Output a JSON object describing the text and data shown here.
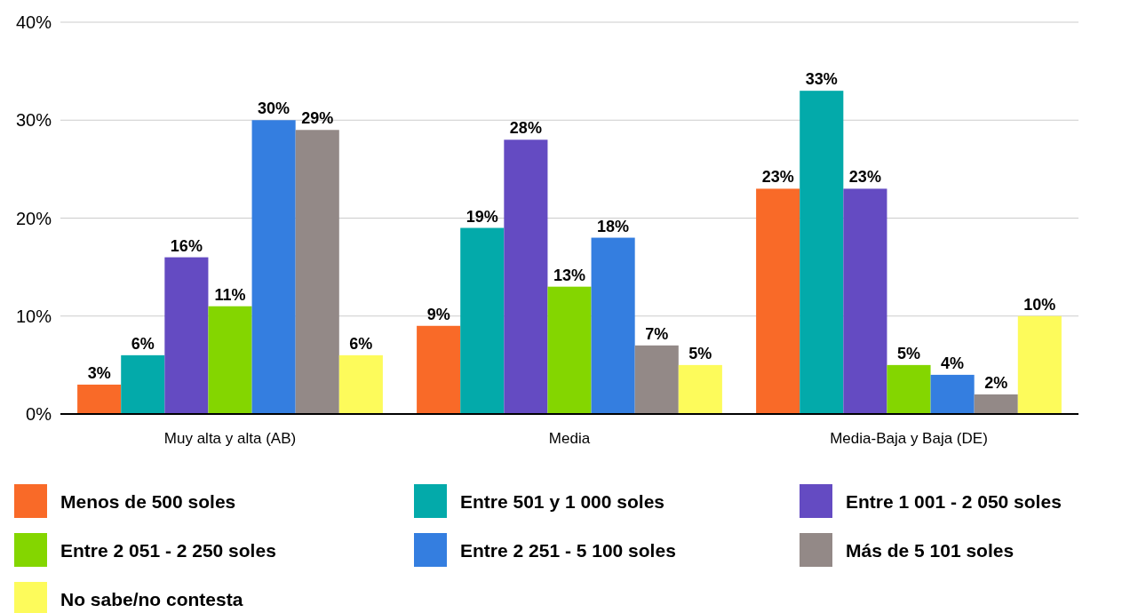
{
  "chart_data": {
    "type": "bar",
    "categories": [
      "Muy alta y alta (AB)",
      "Media",
      "Media-Baja y Baja (DE)"
    ],
    "series": [
      {
        "name": "Menos de 500 soles",
        "color": "#f96a28",
        "values": [
          3,
          9,
          23
        ],
        "value_labels": [
          "3%",
          "9%",
          "23%"
        ]
      },
      {
        "name": "Entre 501 y 1 000 soles",
        "color": "#03aaaa",
        "values": [
          6,
          19,
          33
        ],
        "value_labels": [
          "6%",
          "19%",
          "33%"
        ]
      },
      {
        "name": "Entre 1 001 - 2 050 soles",
        "color": "#644bc2",
        "values": [
          16,
          28,
          23
        ],
        "value_labels": [
          "16%",
          "28%",
          "23%"
        ]
      },
      {
        "name": "Entre 2 051 - 2 250 soles",
        "color": "#84d600",
        "values": [
          11,
          13,
          5
        ],
        "value_labels": [
          "11%",
          "13%",
          "5%"
        ]
      },
      {
        "name": "Entre 2 251 - 5 100 soles",
        "color": "#347ee0",
        "values": [
          30,
          18,
          4
        ],
        "value_labels": [
          "30%",
          "18%",
          "4%"
        ]
      },
      {
        "name": "Más de 5 101 soles",
        "color": "#938987",
        "values": [
          29,
          7,
          2
        ],
        "value_labels": [
          "29%",
          "7%",
          "2%"
        ]
      },
      {
        "name": "No sabe/no contesta",
        "color": "#fdfb5b",
        "values": [
          6,
          5,
          10
        ],
        "value_labels": [
          "6%",
          "5%",
          "10%"
        ]
      }
    ],
    "ylim": [
      0,
      40
    ],
    "yticks": [
      {
        "value": 0,
        "label": "0%"
      },
      {
        "value": 10,
        "label": "10%"
      },
      {
        "value": 20,
        "label": "20%"
      },
      {
        "value": 30,
        "label": "30%"
      },
      {
        "value": 40,
        "label": "40%"
      }
    ],
    "grid": "y",
    "legend": "bottom"
  }
}
